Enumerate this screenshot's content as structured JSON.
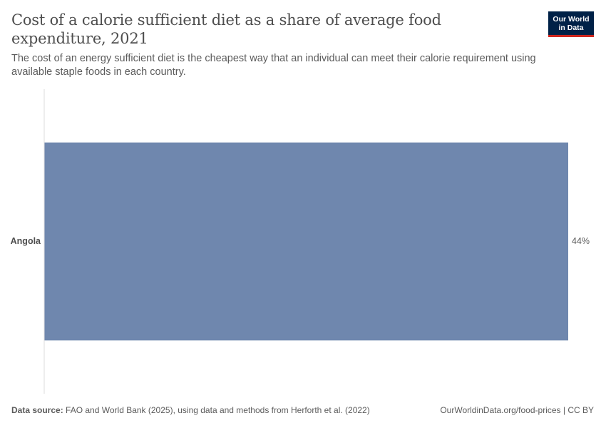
{
  "title": "Cost of a calorie sufficient diet as a share of average food expenditure, 2021",
  "subtitle": "The cost of an energy sufficient diet is the cheapest way that an individual can meet their calorie requirement using available staple foods in each country.",
  "logo": {
    "line1": "Our World",
    "line2": "in Data"
  },
  "footer": {
    "source_label": "Data source:",
    "source_text": "FAO and World Bank (2025), using data and methods from Herforth et al. (2022)",
    "url_text": "OurWorldinData.org/food-prices | CC BY"
  },
  "colors": {
    "bar": "#6f87ae",
    "axis": "#dddddd",
    "label": "#4e4e4e",
    "value": "#5b5b5b"
  },
  "chart_data": {
    "type": "bar",
    "orientation": "horizontal",
    "categories": [
      "Angola"
    ],
    "values": [
      44
    ],
    "value_labels": [
      "44%"
    ],
    "unit": "%",
    "xlim": [
      0,
      44
    ]
  }
}
